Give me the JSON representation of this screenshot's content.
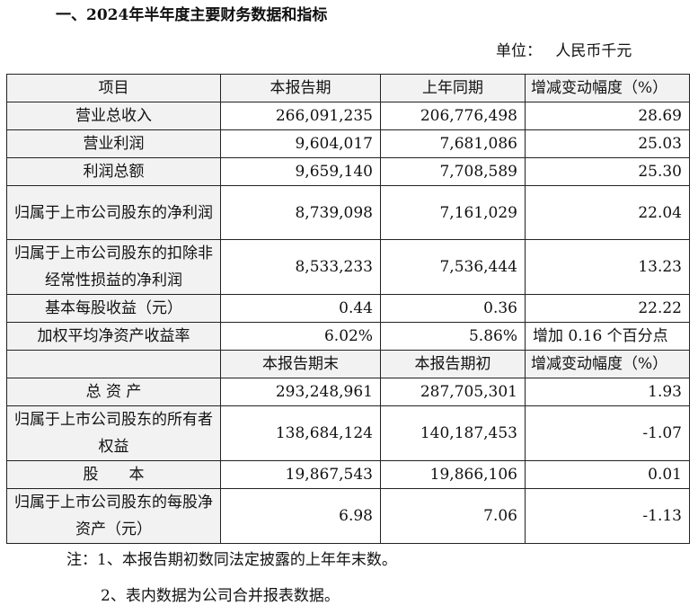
{
  "title": "一、2024年半年度主要财务数据和指标",
  "unit": "单位： 人民币千元",
  "header1": [
    "项目",
    "本报告期",
    "上年同期",
    "增减变动幅度（%）"
  ],
  "rows1": [
    [
      "营业总收入",
      "266,091,235",
      "206,776,498",
      "28.69"
    ],
    [
      "营业利润",
      "9,604,017",
      "7,681,086",
      "25.03"
    ],
    [
      "利润总额",
      "9,659,140",
      "7,708,589",
      "25.30"
    ],
    [
      "归属于上市公司股东的净利润",
      "8,739,098",
      "7,161,029",
      "22.04"
    ],
    [
      "归属于上市公司股东的扣除非经常性损益的净利润",
      "8,533,233",
      "7,536,444",
      "13.23"
    ],
    [
      "基本每股收益（元）",
      "0.44",
      "0.36",
      "22.22"
    ],
    [
      "加权平均净资产收益率",
      "6.02%",
      "5.86%",
      "增加 0.16 个百分点"
    ]
  ],
  "header2": [
    "",
    "本报告期末",
    "本报告期初",
    "增减变动幅度（%）"
  ],
  "rows2": [
    [
      "总 资 产",
      "293,248,961",
      "287,705,301",
      "1.93"
    ],
    [
      "归属于上市公司股东的所有者权益",
      "138,684,124",
      "140,187,453",
      "-1.07"
    ],
    [
      "股　　本",
      "19,867,543",
      "19,866,106",
      "0.01"
    ],
    [
      "归属于上市公司股东的每股净资产（元）",
      "6.98",
      "7.06",
      "-1.13"
    ]
  ],
  "notes": [
    "注：1、本报告期初数同法定披露的上年年末数。",
    "2、表内数据为公司合并报表数据。"
  ]
}
